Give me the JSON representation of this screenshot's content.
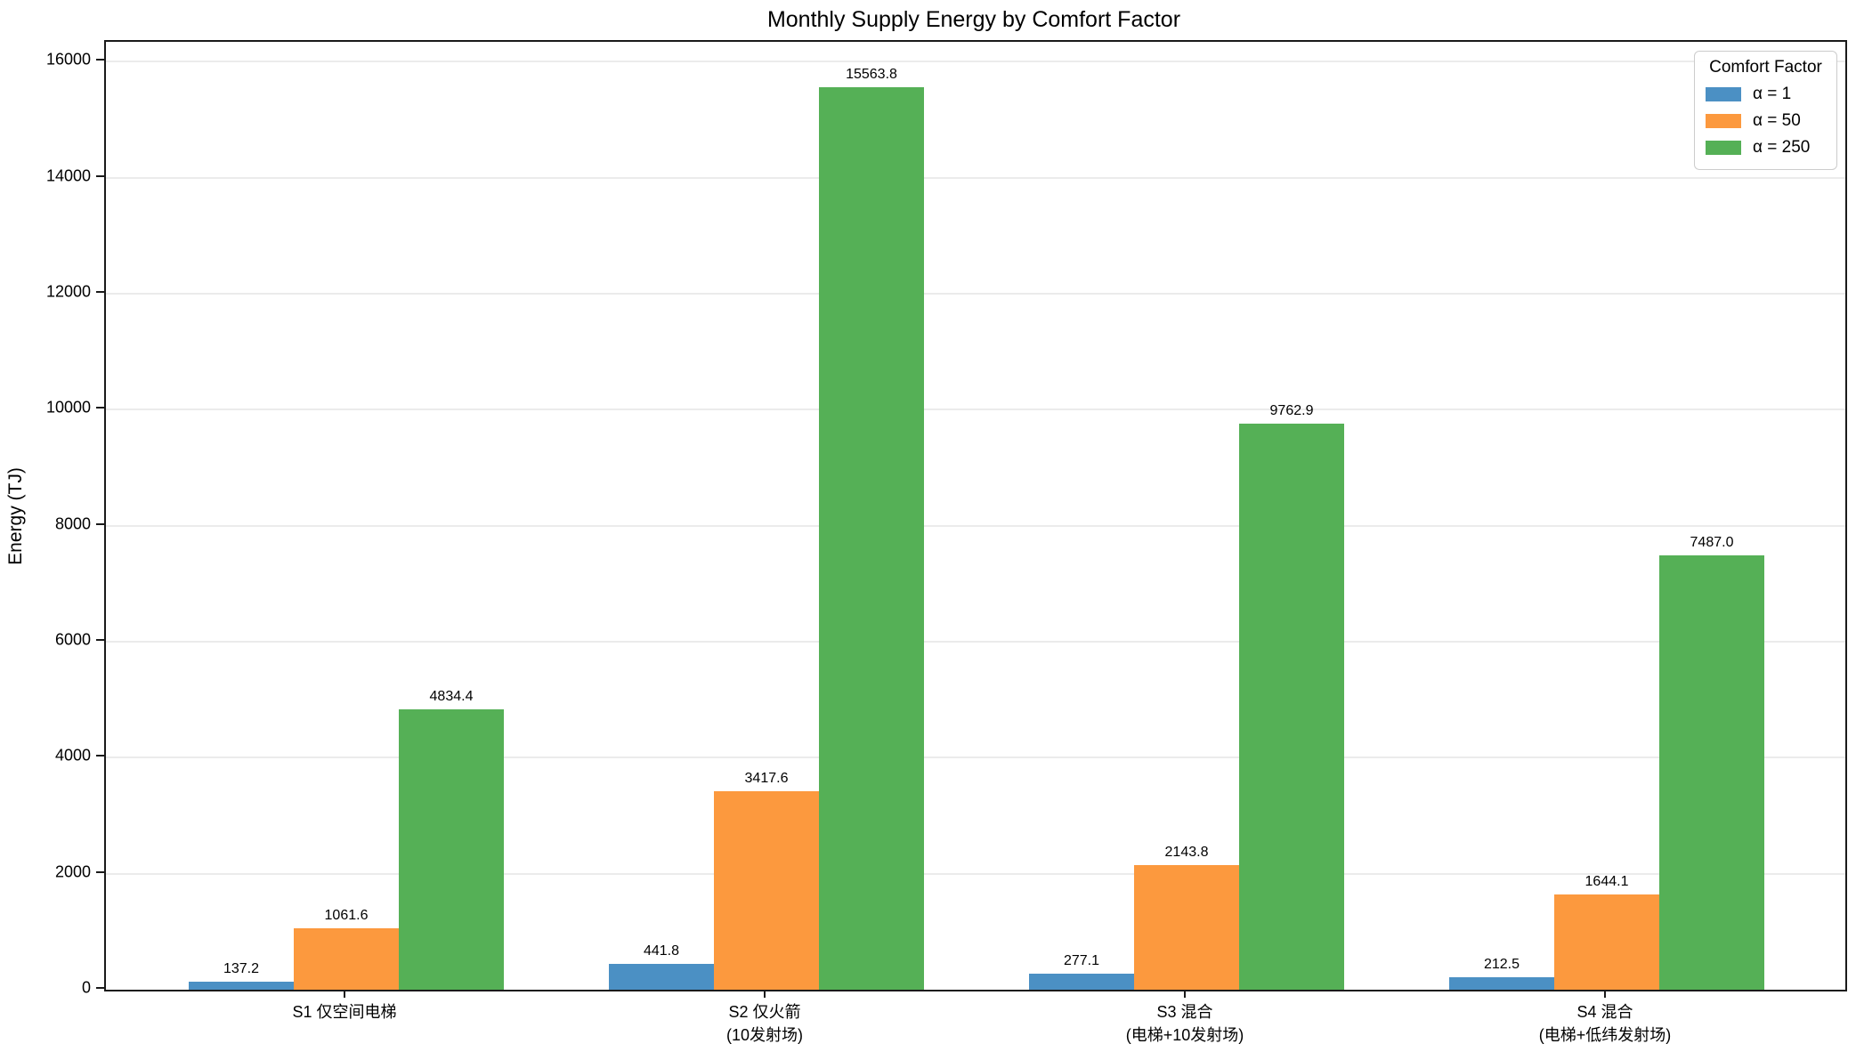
{
  "title": "Monthly Supply Energy by Comfort Factor",
  "y_axis_label": "Energy (TJ)",
  "colors": {
    "alpha_1": "#4B90C4",
    "alpha_50": "#FC993E",
    "alpha_250": "#55B056",
    "gridline": "#ebebeb",
    "spine": "#1a1a1a"
  },
  "legend": {
    "title": "Comfort Factor",
    "entries": [
      {
        "label": "α = 1",
        "color": "#4B90C4"
      },
      {
        "label": "α = 50",
        "color": "#FC993E"
      },
      {
        "label": "α = 250",
        "color": "#55B056"
      }
    ],
    "position": "upper right"
  },
  "chart_data": {
    "type": "bar",
    "title": "Monthly Supply Energy by Comfort Factor",
    "xlabel": "",
    "ylabel": "Energy (TJ)",
    "categories": [
      "S1 仅空间电梯",
      "S2 仅火箭\n(10发射场)",
      "S3 混合\n(电梯+10发射场)",
      "S4 混合\n(电梯+低纬发射场)"
    ],
    "category_label_lines": [
      [
        "S1 仅空间电梯"
      ],
      [
        "S2 仅火箭",
        "(10发射场)"
      ],
      [
        "S3 混合",
        "(电梯+10发射场)"
      ],
      [
        "S4 混合",
        "(电梯+低纬发射场)"
      ]
    ],
    "series": [
      {
        "name": "α = 1",
        "color": "#4B90C4",
        "values": [
          137.2,
          441.8,
          277.1,
          212.5
        ]
      },
      {
        "name": "α = 50",
        "color": "#FC993E",
        "values": [
          1061.6,
          3417.6,
          2143.8,
          1644.1
        ]
      },
      {
        "name": "α = 250",
        "color": "#55B056",
        "values": [
          4834.4,
          15563.8,
          9762.9,
          7487.0
        ]
      }
    ],
    "bar_value_labels": true,
    "ylim": [
      0,
      16342
    ],
    "yticks": [
      0,
      2000,
      4000,
      6000,
      8000,
      10000,
      12000,
      14000,
      16000
    ],
    "grid": "horizontal",
    "legend_position": "upper right"
  }
}
